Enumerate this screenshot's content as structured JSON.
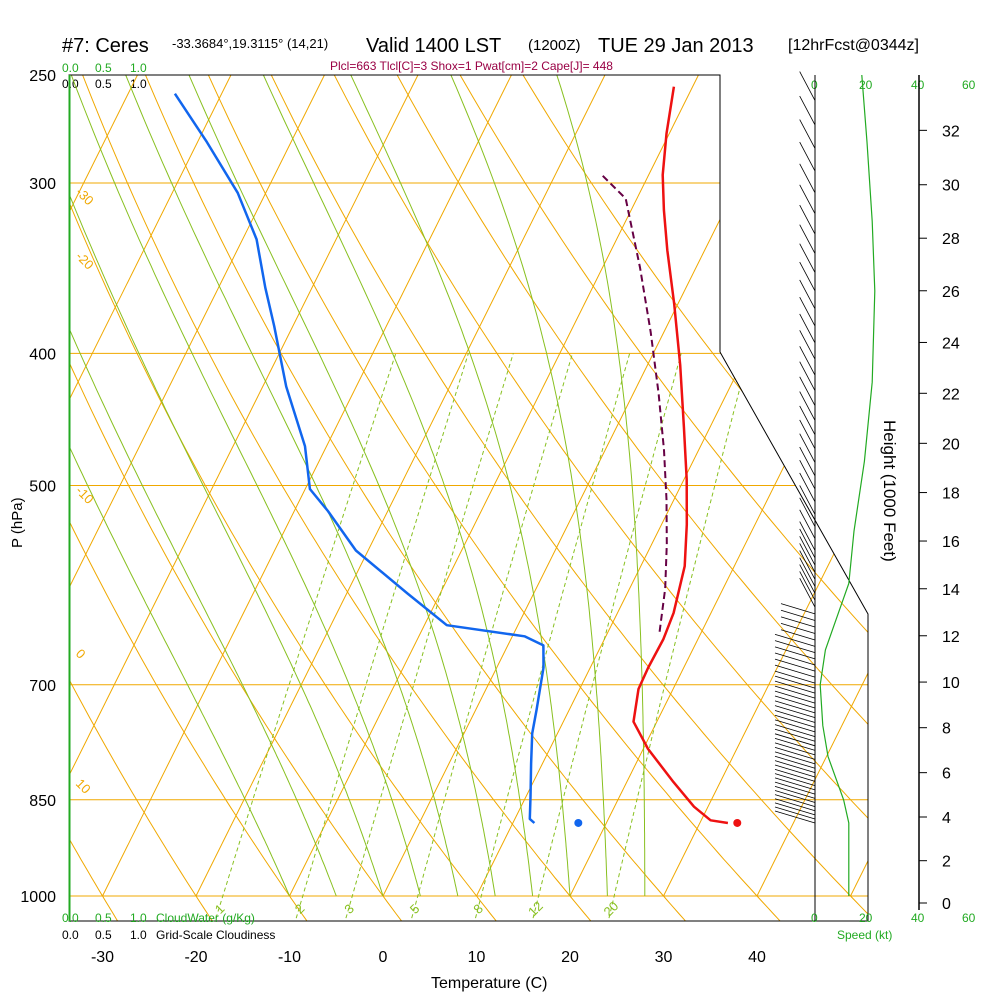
{
  "header": {
    "station": "#7: Ceres",
    "coords": "-33.3684°,19.3115° (14,21)",
    "valid": "Valid 1400 LST",
    "utc": "(1200Z)",
    "date": "TUE 29 Jan 2013",
    "forecast": "[12hrFcst@0344z]",
    "indices": "Plcl=663 Tlcl[C]=3 Shox=1 Pwat[cm]=2 Cape[J]= 448"
  },
  "colors": {
    "isotherm": "#f0a800",
    "dry_adiabat": "#f0a800",
    "moist_adiabat": "#88c020",
    "mixing_ratio": "#88c020",
    "temperature": "#ee1111",
    "dewpoint": "#1166ee",
    "parcel": "#660044",
    "wind_speed": "#22aa22",
    "cloud_axis": "#22aa22"
  },
  "top_scales": {
    "cloudwater": [
      "0.0",
      "0.5",
      "1.0"
    ],
    "cloudiness": [
      "0.0",
      "0.5",
      "1.0"
    ],
    "speed": [
      "0",
      "20",
      "40",
      "60"
    ]
  },
  "bottom_scales": {
    "cloudwater": [
      "0.0",
      "0.5",
      "1.0"
    ],
    "cloudwater_label": "CloudWater (g/Kg)",
    "cloudiness": [
      "0.0",
      "0.5",
      "1.0"
    ],
    "cloudiness_label": "Grid-Scale Cloudiness",
    "speed": [
      "0",
      "20",
      "40",
      "60"
    ],
    "speed_label": "Speed (kt)"
  },
  "axis_labels": {
    "x": "Temperature (C)",
    "y": "P (hPa)",
    "height": "Height (1000 Feet)"
  },
  "chart_data": {
    "type": "line",
    "subtype": "skew-T log-P sounding",
    "title": "#7: Ceres Valid 1400 LST (1200Z) TUE 29 Jan 2013",
    "xlabel": "Temperature (C)",
    "ylabel": "P (hPa)",
    "x_ticks": [
      -30,
      -20,
      -10,
      0,
      10,
      20,
      30,
      40
    ],
    "p_ticks": [
      250,
      300,
      400,
      500,
      700,
      850,
      1000
    ],
    "height_ticks_kft": [
      0,
      2,
      4,
      6,
      8,
      10,
      12,
      14,
      16,
      18,
      20,
      22,
      24,
      26,
      28,
      30,
      32
    ],
    "isotherm_labels": [
      -30,
      -20,
      -10,
      0,
      10,
      20,
      30
    ],
    "mixing_ratio_labels": [
      "1",
      "2",
      "3",
      "5",
      "8",
      "12",
      "20"
    ],
    "dry_adiabat_theta_C": [
      -30,
      -20,
      -10,
      0,
      10,
      20,
      30,
      40,
      50,
      60,
      70,
      80,
      90
    ],
    "moist_adiabat_thetaw_C": [
      -10,
      -5,
      0,
      4,
      8,
      12,
      16,
      20,
      24,
      28
    ],
    "mixing_ratio_lines_gkg": [
      1,
      2,
      3,
      5,
      8,
      12,
      20
    ],
    "series": [
      {
        "name": "Temperature",
        "points": [
          [
            33.0,
            884
          ],
          [
            31.0,
            880
          ],
          [
            28.5,
            860
          ],
          [
            25.0,
            825
          ],
          [
            20.5,
            780
          ],
          [
            17.5,
            745
          ],
          [
            16.3,
            705
          ],
          [
            16.2,
            680
          ],
          [
            16.3,
            648
          ],
          [
            16.0,
            620
          ],
          [
            14.7,
            573
          ],
          [
            12.7,
            534
          ],
          [
            10.3,
            495
          ],
          [
            7.2,
            453
          ],
          [
            3.5,
            408
          ],
          [
            -0.4,
            368
          ],
          [
            -4.0,
            336
          ],
          [
            -6.5,
            314
          ],
          [
            -8.5,
            296
          ],
          [
            -10.3,
            276
          ],
          [
            -12.0,
            255
          ]
        ]
      },
      {
        "name": "Dewpoint",
        "points": [
          [
            12.3,
            884
          ],
          [
            11.6,
            878
          ],
          [
            10.5,
            846
          ],
          [
            8.8,
            800
          ],
          [
            7.3,
            760
          ],
          [
            6.5,
            730
          ],
          [
            5.0,
            680
          ],
          [
            3.8,
            655
          ],
          [
            1.3,
            645
          ],
          [
            -7.6,
            633
          ],
          [
            -13.5,
            600
          ],
          [
            -21.3,
            558
          ],
          [
            -26.4,
            522
          ],
          [
            -29.5,
            503
          ],
          [
            -32.3,
            468
          ],
          [
            -37.5,
            423
          ],
          [
            -42.0,
            382
          ],
          [
            -45.0,
            358
          ],
          [
            -48.5,
            330
          ],
          [
            -53.0,
            305
          ],
          [
            -59.0,
            280
          ],
          [
            -65.0,
            258
          ]
        ]
      },
      {
        "name": "Parcel",
        "points": [
          [
            15.5,
            640
          ],
          [
            13.8,
            595
          ],
          [
            11.6,
            552
          ],
          [
            9.2,
            512
          ],
          [
            6.3,
            471
          ],
          [
            2.7,
            428
          ],
          [
            -1.4,
            386
          ],
          [
            -6.0,
            346
          ],
          [
            -11.2,
            308
          ],
          [
            -15.0,
            296
          ]
        ]
      }
    ],
    "surface_markers": {
      "temperature": [
        34.0,
        884
      ],
      "dewpoint": [
        17.0,
        884
      ]
    },
    "wind_speed_profile": [
      [
        13,
        1000
      ],
      [
        13,
        884
      ],
      [
        11,
        850
      ],
      [
        5,
        790
      ],
      [
        3,
        750
      ],
      [
        2,
        700
      ],
      [
        4,
        660
      ],
      [
        9,
        620
      ],
      [
        13,
        590
      ],
      [
        15,
        540
      ],
      [
        19,
        480
      ],
      [
        22,
        420
      ],
      [
        23,
        360
      ],
      [
        22,
        320
      ],
      [
        20,
        280
      ],
      [
        18,
        250
      ]
    ]
  }
}
